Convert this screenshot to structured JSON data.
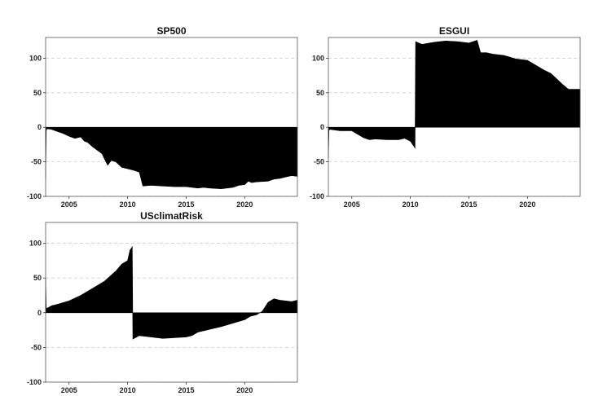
{
  "chart_data": [
    {
      "type": "area",
      "title": "SP500",
      "xlabel": "",
      "ylabel": "",
      "xlim": [
        2003.0,
        2024.5
      ],
      "ylim": [
        -100,
        130
      ],
      "yticks": [
        -100,
        -50,
        0,
        50,
        100
      ],
      "xticks": [
        2005,
        2010,
        2015,
        2020
      ],
      "grid": "horizontal-dashed",
      "color": "#000000",
      "series": [
        {
          "x": [
            2003.0,
            2003.05,
            2003.1,
            2003.5,
            2004.0,
            2004.5,
            2005.0,
            2005.5,
            2006.0,
            2006.3,
            2006.6,
            2007.0,
            2007.4,
            2007.8,
            2008.0,
            2008.3,
            2008.6,
            2009.0,
            2009.5,
            2010.0,
            2010.5,
            2011.0,
            2011.3,
            2012.0,
            2013.0,
            2014.0,
            2015.0,
            2015.5,
            2016.0,
            2016.5,
            2017.0,
            2018.0,
            2019.0,
            2019.5,
            2020.0,
            2020.3,
            2020.6,
            2021.0,
            2022.0,
            2022.5,
            2023.0,
            2023.5,
            2024.0,
            2024.5
          ],
          "y": [
            -75,
            -5,
            -2,
            -3,
            -6,
            -9,
            -13,
            -16,
            -14,
            -20,
            -22,
            -28,
            -33,
            -38,
            -45,
            -55,
            -48,
            -50,
            -58,
            -60,
            -62,
            -65,
            -85,
            -84,
            -85,
            -86,
            -86,
            -87,
            -88,
            -87,
            -88,
            -89,
            -87,
            -84,
            -83,
            -78,
            -80,
            -79,
            -78,
            -75,
            -74,
            -72,
            -70,
            -71
          ]
        }
      ]
    },
    {
      "type": "area",
      "title": "ESGUI",
      "xlabel": "",
      "ylabel": "",
      "xlim": [
        2003.0,
        2024.5
      ],
      "ylim": [
        -100,
        130
      ],
      "yticks": [
        -100,
        -50,
        0,
        50,
        100
      ],
      "xticks": [
        2005,
        2010,
        2015,
        2020
      ],
      "grid": "horizontal-dashed",
      "color": "#000000",
      "series": [
        {
          "x": [
            2003.0,
            2003.05,
            2003.1,
            2004.0,
            2005.0,
            2005.5,
            2006.0,
            2006.5,
            2007.0,
            2008.0,
            2009.0,
            2009.5,
            2010.0,
            2010.4,
            2010.45,
            2011.0,
            2012.0,
            2013.0,
            2014.0,
            2015.0,
            2015.7,
            2016.0,
            2016.5,
            2017.0,
            2018.0,
            2019.0,
            2020.0,
            2020.5,
            2021.0,
            2021.5,
            2022.0,
            2022.5,
            2023.0,
            2023.5,
            2024.0,
            2024.5
          ],
          "y": [
            -45,
            -5,
            -3,
            -5,
            -5,
            -10,
            -15,
            -18,
            -17,
            -18,
            -18,
            -16,
            -20,
            -30,
            124,
            120,
            123,
            125,
            124,
            122,
            126,
            108,
            108,
            106,
            104,
            99,
            97,
            92,
            87,
            82,
            78,
            70,
            62,
            55,
            55,
            55
          ]
        }
      ]
    },
    {
      "type": "area",
      "title": "USclimatRisk",
      "xlabel": "",
      "ylabel": "",
      "xlim": [
        2003.0,
        2024.5
      ],
      "ylim": [
        -100,
        130
      ],
      "yticks": [
        -100,
        -50,
        0,
        50,
        100
      ],
      "xticks": [
        2005,
        2010,
        2015,
        2020
      ],
      "grid": "horizontal-dashed",
      "color": "#000000",
      "series": [
        {
          "x": [
            2003.0,
            2003.05,
            2003.1,
            2003.5,
            2004.0,
            2005.0,
            2006.0,
            2007.0,
            2008.0,
            2009.0,
            2009.5,
            2010.0,
            2010.2,
            2010.4,
            2010.45,
            2011.0,
            2012.0,
            2013.0,
            2014.0,
            2015.0,
            2015.5,
            2016.0,
            2017.0,
            2018.0,
            2019.0,
            2020.0,
            2020.5,
            2021.0,
            2021.5,
            2022.0,
            2022.5,
            2023.0,
            2023.5,
            2024.0,
            2024.5
          ],
          "y": [
            50,
            8,
            6,
            10,
            12,
            17,
            25,
            35,
            45,
            60,
            70,
            75,
            90,
            95,
            -38,
            -33,
            -35,
            -37,
            -36,
            -35,
            -33,
            -28,
            -24,
            -20,
            -15,
            -10,
            -5,
            -3,
            2,
            15,
            20,
            18,
            17,
            16,
            18
          ]
        }
      ]
    }
  ]
}
